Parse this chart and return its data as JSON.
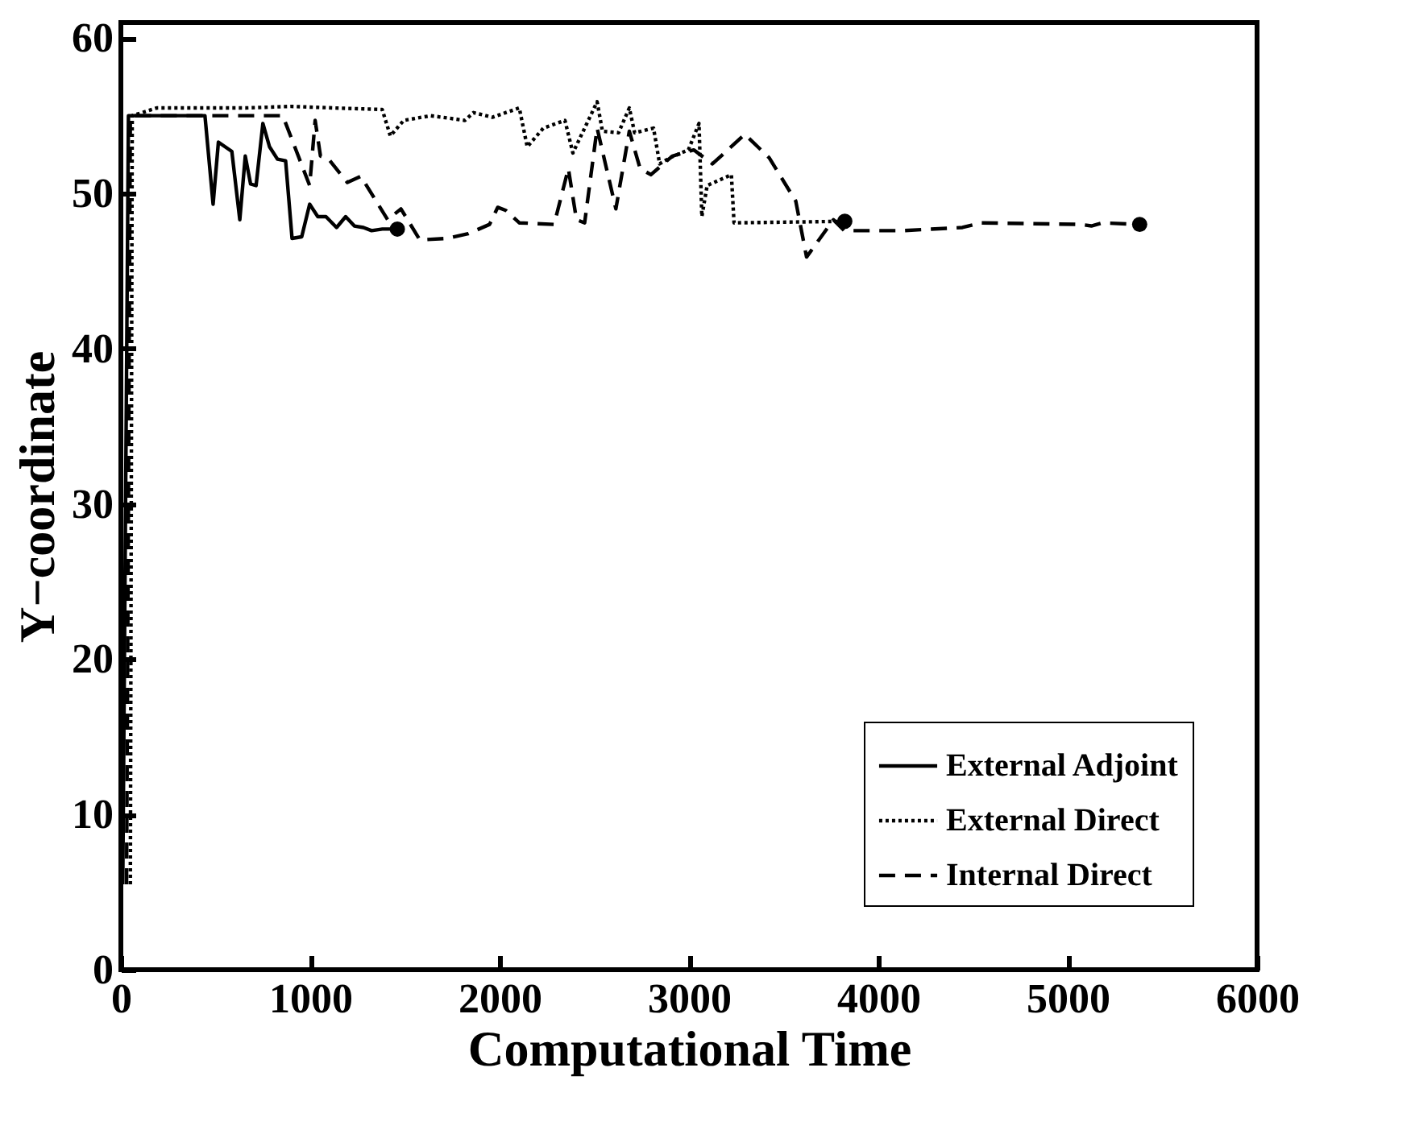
{
  "chart_data": {
    "type": "line",
    "xlabel": "Computational Time",
    "ylabel": "Y−coordinate",
    "xlim": [
      0,
      6000
    ],
    "ylim": [
      0,
      61
    ],
    "xticks": [
      0,
      1000,
      2000,
      3000,
      4000,
      5000,
      6000
    ],
    "yticks": [
      0,
      10,
      20,
      30,
      40,
      50,
      60
    ],
    "grid": false,
    "legend": "bottom right",
    "series": [
      {
        "name": "External Adjoint",
        "color": "#000000",
        "line_style": "solid",
        "x": [
          10,
          40,
          444,
          487,
          515,
          586,
          628,
          657,
          685,
          714,
          750,
          785,
          827,
          870,
          904,
          955,
          997,
          1040,
          1083,
          1139,
          1187,
          1233,
          1281,
          1324,
          1381,
          1460
        ],
        "values": [
          5.5,
          55,
          55,
          49.3,
          53.3,
          52.7,
          48.3,
          52.4,
          50.6,
          50.5,
          54.5,
          53.0,
          52.2,
          52.1,
          47.1,
          47.2,
          49.3,
          48.5,
          48.5,
          47.8,
          48.5,
          47.9,
          47.8,
          47.6,
          47.7,
          47.7
        ]
      },
      {
        "name": "External Direct",
        "color": "#000000",
        "line_style": "dotted",
        "x": [
          50,
          60,
          189,
          430,
          657,
          898,
          1125,
          1380,
          1423,
          1494,
          1636,
          1817,
          1862,
          1962,
          2104,
          2146,
          2231,
          2345,
          2387,
          2515,
          2543,
          2628,
          2685,
          2713,
          2813,
          2845,
          2901,
          2997,
          3053,
          3068,
          3096,
          3224,
          3238,
          3823
        ],
        "values": [
          5.5,
          55,
          55.5,
          55.5,
          55.5,
          55.6,
          55.5,
          55.4,
          53.7,
          54.7,
          55.0,
          54.7,
          55.2,
          54.9,
          55.5,
          53.0,
          54.2,
          54.7,
          52.6,
          55.9,
          54.0,
          53.9,
          55.5,
          53.9,
          54.2,
          51.9,
          52.3,
          52.8,
          54.5,
          48.5,
          50.5,
          51.2,
          48.1,
          48.2
        ]
      },
      {
        "name": "Internal Direct",
        "color": "#000000",
        "line_style": "dashed",
        "x": [
          30,
          50,
          855,
          997,
          1026,
          1054,
          1097,
          1196,
          1267,
          1409,
          1479,
          1579,
          1721,
          1834,
          1947,
          1990,
          2033,
          2104,
          2288,
          2363,
          2406,
          2449,
          2515,
          2614,
          2685,
          2742,
          2799,
          2912,
          3025,
          3124,
          3295,
          3423,
          3564,
          3621,
          3763,
          3820,
          4132,
          4444,
          4543,
          5068,
          5125,
          5182,
          5380
        ],
        "values": [
          5.5,
          55,
          55,
          50.5,
          54.7,
          52.4,
          52.2,
          50.7,
          51.1,
          48.3,
          49.0,
          47.0,
          47.1,
          47.4,
          48.0,
          49.1,
          48.9,
          48.1,
          48.0,
          51.6,
          48.3,
          48.1,
          54.2,
          49.0,
          54.0,
          51.6,
          51.2,
          52.4,
          52.8,
          51.9,
          53.8,
          52.3,
          49.5,
          45.9,
          48.3,
          47.6,
          47.6,
          47.8,
          48.1,
          48.0,
          47.9,
          48.1,
          48.0
        ]
      },
      {
        "type": "scatter",
        "marker": "circle",
        "color": "#000000",
        "x": [
          1460,
          3823,
          5380
        ],
        "values": [
          47.7,
          48.2,
          48.0
        ]
      }
    ]
  }
}
